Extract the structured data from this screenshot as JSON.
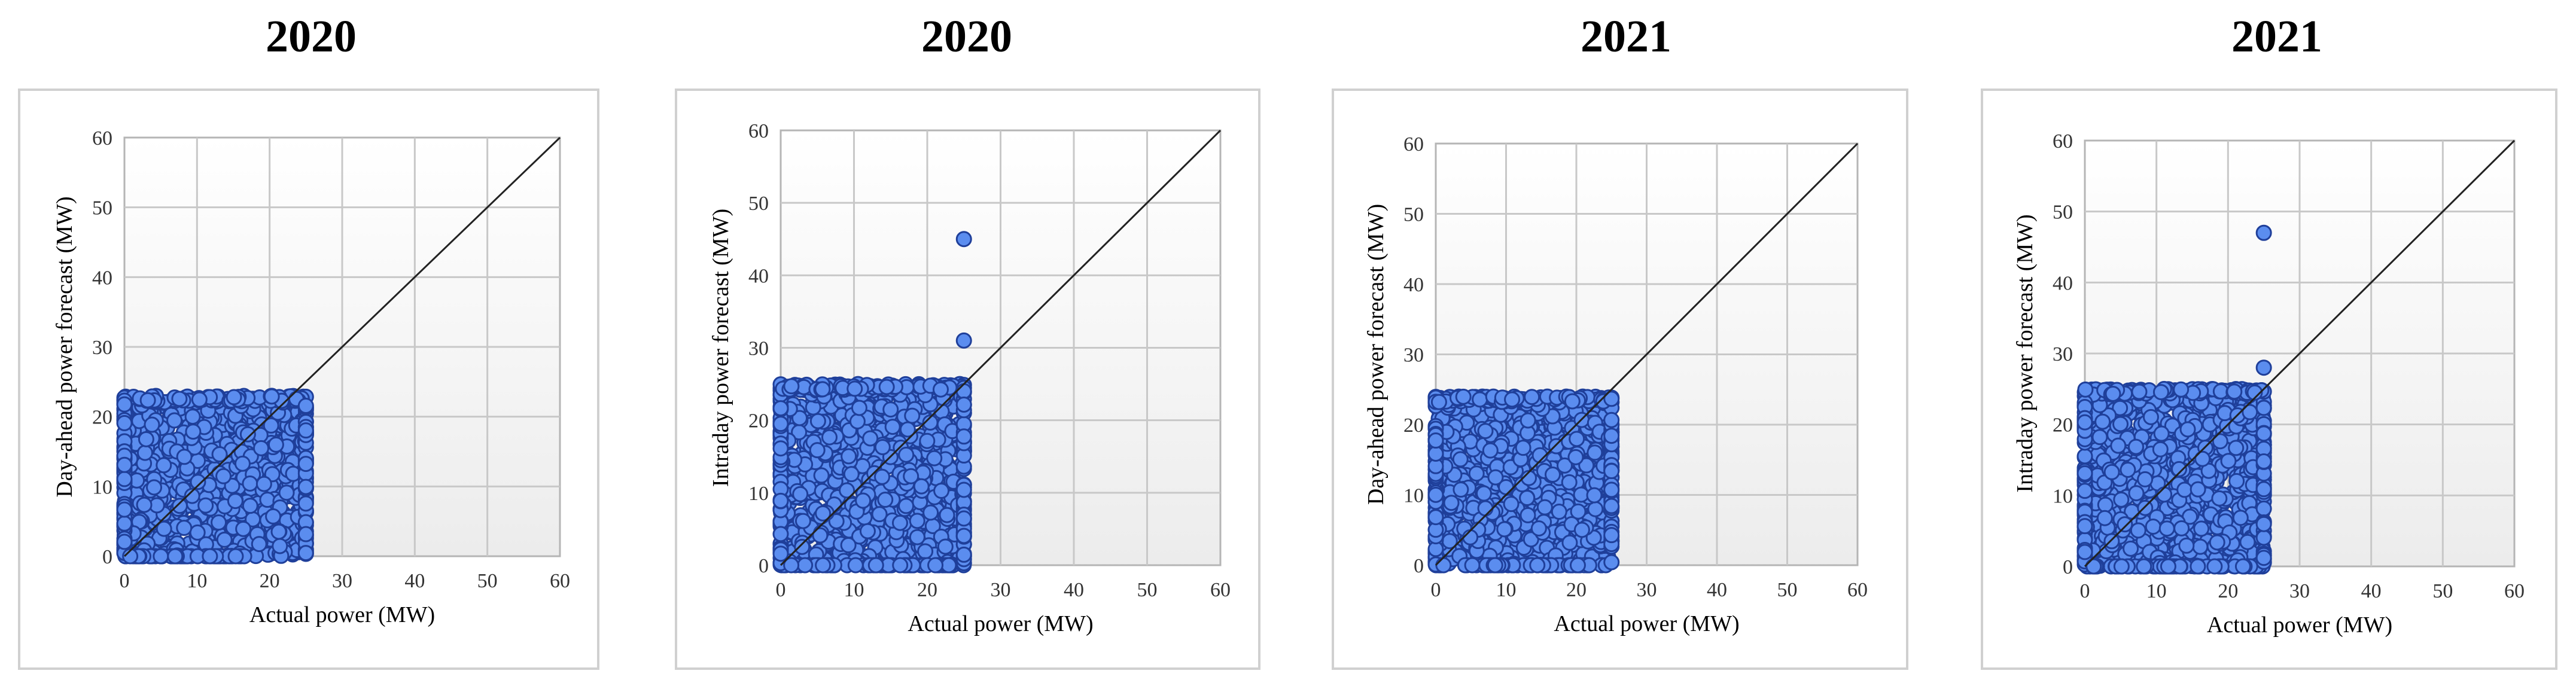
{
  "chart_data": [
    {
      "type": "scatter",
      "title": "2020",
      "xlabel": "Actual power (MW)",
      "ylabel": "Day-ahead power forecast (MW)",
      "xlim": [
        0,
        60
      ],
      "ylim": [
        0,
        60
      ],
      "xticks": [
        "0",
        "10",
        "20",
        "30",
        "40",
        "50",
        "60"
      ],
      "yticks": [
        "0",
        "10",
        "20",
        "30",
        "40",
        "50",
        "60"
      ],
      "grid": true,
      "reference_line": {
        "from": [
          0,
          0
        ],
        "to": [
          60,
          60
        ]
      },
      "cluster": {
        "x_range": [
          0,
          25
        ],
        "y_range": [
          0,
          23
        ],
        "x_cutoff_low_y": 17
      },
      "outliers": [],
      "marker_color": "#5b8def"
    },
    {
      "type": "scatter",
      "title": "2020",
      "xlabel": "Actual power (MW)",
      "ylabel": "Intraday power forecast (MW)",
      "xlim": [
        0,
        60
      ],
      "ylim": [
        0,
        60
      ],
      "xticks": [
        "0",
        "10",
        "20",
        "30",
        "40",
        "50",
        "60"
      ],
      "yticks": [
        "0",
        "10",
        "20",
        "30",
        "40",
        "50",
        "60"
      ],
      "grid": true,
      "reference_line": {
        "from": [
          0,
          0
        ],
        "to": [
          60,
          60
        ]
      },
      "cluster": {
        "x_range": [
          0,
          25
        ],
        "y_range": [
          0,
          25
        ],
        "x_cutoff_low_y": 25
      },
      "outliers": [
        [
          25,
          45
        ],
        [
          25,
          31
        ]
      ],
      "marker_color": "#5b8def"
    },
    {
      "type": "scatter",
      "title": "2021",
      "xlabel": "Actual power (MW)",
      "ylabel": "Day-ahead power forecast (MW)",
      "xlim": [
        0,
        60
      ],
      "ylim": [
        0,
        60
      ],
      "xticks": [
        "0",
        "10",
        "20",
        "30",
        "40",
        "50",
        "60"
      ],
      "yticks": [
        "0",
        "10",
        "20",
        "30",
        "40",
        "50",
        "60"
      ],
      "grid": true,
      "reference_line": {
        "from": [
          0,
          0
        ],
        "to": [
          60,
          60
        ]
      },
      "cluster": {
        "x_range": [
          0,
          25
        ],
        "y_range": [
          0,
          24
        ],
        "x_cutoff_low_y": 25
      },
      "outliers": [],
      "marker_color": "#5b8def"
    },
    {
      "type": "scatter",
      "title": "2021",
      "xlabel": "Actual power (MW)",
      "ylabel": "Intraday power forecast (MW)",
      "xlim": [
        0,
        60
      ],
      "ylim": [
        0,
        60
      ],
      "xticks": [
        "0",
        "10",
        "20",
        "30",
        "40",
        "50",
        "60"
      ],
      "yticks": [
        "0",
        "10",
        "20",
        "30",
        "40",
        "50",
        "60"
      ],
      "grid": true,
      "reference_line": {
        "from": [
          0,
          0
        ],
        "to": [
          60,
          60
        ]
      },
      "cluster": {
        "x_range": [
          0,
          25
        ],
        "y_range": [
          0,
          25
        ],
        "x_cutoff_low_y": 25
      },
      "outliers": [
        [
          25,
          47
        ],
        [
          25,
          28
        ]
      ],
      "marker_color": "#5b8def"
    }
  ]
}
